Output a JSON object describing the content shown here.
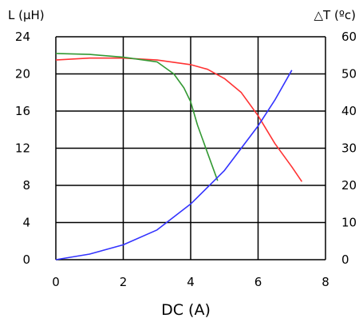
{
  "chart_data": {
    "type": "line",
    "xlabel": "DC (A)",
    "ylabel_left": "L (µH)",
    "ylabel_right": "△T (ºc)",
    "xlim": [
      0,
      8
    ],
    "ylim_left": [
      0,
      24
    ],
    "ylim_right": [
      0,
      60
    ],
    "x_ticks": [
      "0",
      "2",
      "4",
      "6",
      "8"
    ],
    "y_left_ticks": [
      "0",
      "4",
      "8",
      "12",
      "16",
      "20",
      "24"
    ],
    "y_right_ticks": [
      "0",
      "10",
      "20",
      "30",
      "40",
      "50",
      "60"
    ],
    "grid": true,
    "series": [
      {
        "axis": "left",
        "color": "#ff3333",
        "x": [
          0,
          1,
          2,
          3,
          4,
          4.5,
          5,
          5.5,
          6,
          6.5,
          7,
          7.3
        ],
        "y": [
          21.5,
          21.7,
          21.7,
          21.5,
          21.0,
          20.5,
          19.5,
          18.0,
          15.5,
          12.5,
          10.0,
          8.4
        ]
      },
      {
        "axis": "left",
        "color": "#339933",
        "x": [
          0,
          1,
          2,
          3,
          3.5,
          3.8,
          4.0,
          4.2,
          4.5,
          4.8
        ],
        "y": [
          22.2,
          22.1,
          21.8,
          21.3,
          20.0,
          18.5,
          17.0,
          14.5,
          11.5,
          8.5
        ]
      },
      {
        "axis": "right",
        "color": "#3333ff",
        "x": [
          0,
          1,
          2,
          3,
          4,
          5,
          5.5,
          6,
          6.5,
          7.0
        ],
        "y": [
          0,
          1.5,
          4,
          8,
          15,
          24,
          30,
          36,
          43,
          51
        ]
      }
    ]
  }
}
